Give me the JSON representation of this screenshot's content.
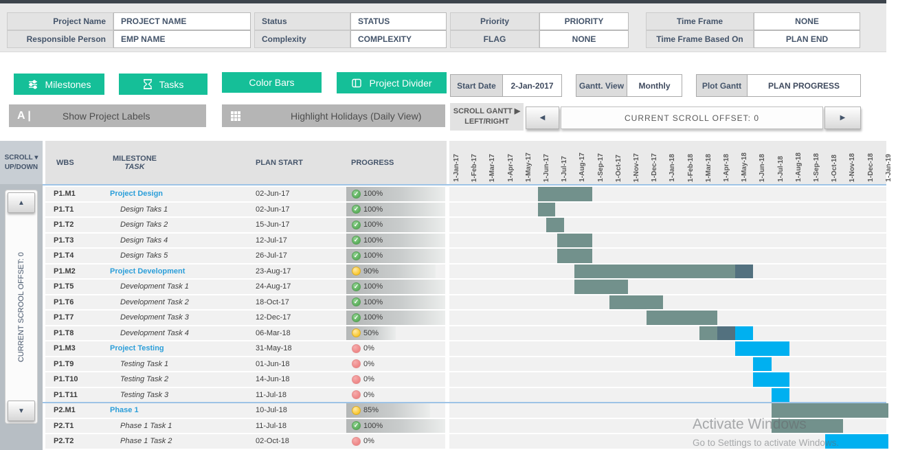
{
  "header_fields": {
    "groups": [
      {
        "rows": [
          {
            "label": "Project Name",
            "value": "PROJECT NAME"
          },
          {
            "label": "Responsible Person",
            "value": "EMP NAME"
          }
        ]
      },
      {
        "rows": [
          {
            "label": "Status",
            "value": "STATUS"
          },
          {
            "label": "Complexity",
            "value": "COMPLEXITY"
          }
        ]
      },
      {
        "rows": [
          {
            "label": "Priority",
            "value": "PRIORITY"
          },
          {
            "label": "FLAG",
            "value": "NONE"
          }
        ]
      },
      {
        "rows": [
          {
            "label": "Time Frame",
            "value": "NONE"
          },
          {
            "label": "Time Frame Based On",
            "value": "PLAN END"
          }
        ]
      }
    ]
  },
  "toolbar": {
    "milestones": "Milestones",
    "tasks": "Tasks",
    "color_bars": "Color Bars",
    "project_divider": "Project Divider",
    "show_labels": "Show Project Labels",
    "show_labels_icon": "A |",
    "highlight_holidays": "Highlight Holidays (Daily View)",
    "start_date_label": "Start Date",
    "start_date_value": "2-Jan-2017",
    "gantt_view_label": "Gantt. View",
    "gantt_view_value": "Monthly",
    "plot_gantt_label": "Plot Gantt",
    "plot_gantt_value": "PLAN PROGRESS",
    "scroll_gantt_line1": "SCROLL GANTT ▶",
    "scroll_gantt_line2": "LEFT/RIGHT",
    "scroll_left_arrow": "◀",
    "scroll_right_arrow": "▶",
    "scroll_offset_text": "CURRENT  SCROLL  OFFSET:  0"
  },
  "table": {
    "scroll_header_line1": "SCROLL ▾",
    "scroll_header_line2": "UP/DOWN",
    "columns": {
      "wbs": "WBS",
      "milestone": "MILESTONE",
      "task": "TASK",
      "plan_start": "PLAN START",
      "progress": "PROGRESS"
    },
    "scrollbar": {
      "up_arrow": "▲",
      "down_arrow": "▼",
      "vertical_text": "CURRENT SCROOL OFFSET: 0"
    },
    "rows": [
      {
        "wbs": "P1.M1",
        "name": "Project Design",
        "type": "milestone",
        "plan_start": "02-Jun-17",
        "progress": "100%",
        "status": "done",
        "bar_pct": 100,
        "segments": [
          {
            "s": 5.05,
            "e": 8.05,
            "c": "sage"
          }
        ]
      },
      {
        "wbs": "P1.T1",
        "name": "Design Taks 1",
        "type": "task",
        "plan_start": "02-Jun-17",
        "progress": "100%",
        "status": "done",
        "bar_pct": 100,
        "segments": [
          {
            "s": 5.05,
            "e": 6.0,
            "c": "sage"
          }
        ]
      },
      {
        "wbs": "P1.T2",
        "name": "Design Taks 2",
        "type": "task",
        "plan_start": "15-Jun-17",
        "progress": "100%",
        "status": "done",
        "bar_pct": 100,
        "segments": [
          {
            "s": 5.5,
            "e": 6.5,
            "c": "sage"
          }
        ]
      },
      {
        "wbs": "P1.T3",
        "name": "Design Taks 4",
        "type": "task",
        "plan_start": "12-Jul-17",
        "progress": "100%",
        "status": "done",
        "bar_pct": 100,
        "segments": [
          {
            "s": 6.1,
            "e": 8.05,
            "c": "sage"
          }
        ]
      },
      {
        "wbs": "P1.T4",
        "name": "Design Taks 5",
        "type": "task",
        "plan_start": "26-Jul-17",
        "progress": "100%",
        "status": "done",
        "bar_pct": 100,
        "segments": [
          {
            "s": 6.1,
            "e": 8.05,
            "c": "sage"
          }
        ]
      },
      {
        "wbs": "P1.M2",
        "name": "Project Development",
        "type": "milestone",
        "plan_start": "23-Aug-17",
        "progress": "90%",
        "status": "mid",
        "bar_pct": 90,
        "segments": [
          {
            "s": 7.05,
            "e": 16.0,
            "c": "sage"
          },
          {
            "s": 16.0,
            "e": 17.0,
            "c": "dark"
          }
        ]
      },
      {
        "wbs": "P1.T5",
        "name": "Development Task 1",
        "type": "task",
        "plan_start": "24-Aug-17",
        "progress": "100%",
        "status": "done",
        "bar_pct": 100,
        "segments": [
          {
            "s": 7.05,
            "e": 10.05,
            "c": "sage"
          }
        ]
      },
      {
        "wbs": "P1.T6",
        "name": "Development Task 2",
        "type": "task",
        "plan_start": "18-Oct-17",
        "progress": "100%",
        "status": "done",
        "bar_pct": 100,
        "segments": [
          {
            "s": 9.0,
            "e": 12.0,
            "c": "sage"
          }
        ]
      },
      {
        "wbs": "P1.T7",
        "name": "Development Task 3",
        "type": "task",
        "plan_start": "12-Dec-17",
        "progress": "100%",
        "status": "done",
        "bar_pct": 100,
        "segments": [
          {
            "s": 11.05,
            "e": 15.0,
            "c": "sage"
          }
        ]
      },
      {
        "wbs": "P1.T8",
        "name": "Development Task 4",
        "type": "task",
        "plan_start": "06-Mar-18",
        "progress": "50%",
        "status": "mid",
        "bar_pct": 50,
        "segments": [
          {
            "s": 14.0,
            "e": 15.0,
            "c": "sage"
          },
          {
            "s": 15.0,
            "e": 16.0,
            "c": "dark"
          },
          {
            "s": 16.0,
            "e": 17.0,
            "c": "blue"
          }
        ]
      },
      {
        "wbs": "P1.M3",
        "name": "Project Testing",
        "type": "milestone",
        "plan_start": "31-May-18",
        "progress": "0%",
        "status": "none",
        "bar_pct": 0,
        "segments": [
          {
            "s": 16.0,
            "e": 19.0,
            "c": "blue"
          }
        ]
      },
      {
        "wbs": "P1.T9",
        "name": "Testing Task 1",
        "type": "task",
        "plan_start": "01-Jun-18",
        "progress": "0%",
        "status": "none",
        "bar_pct": 0,
        "segments": [
          {
            "s": 17.0,
            "e": 18.0,
            "c": "blue"
          }
        ]
      },
      {
        "wbs": "P1.T10",
        "name": "Testing Task 2",
        "type": "task",
        "plan_start": "14-Jun-18",
        "progress": "0%",
        "status": "none",
        "bar_pct": 0,
        "segments": [
          {
            "s": 17.0,
            "e": 19.0,
            "c": "blue"
          }
        ]
      },
      {
        "wbs": "P1.T11",
        "name": "Testing Task 3",
        "type": "task",
        "plan_start": "11-Jul-18",
        "progress": "0%",
        "status": "none",
        "bar_pct": 0,
        "segments": [
          {
            "s": 18.0,
            "e": 19.0,
            "c": "blue"
          }
        ]
      },
      {
        "wbs": "P2.M1",
        "name": "Phase 1",
        "type": "milestone",
        "plan_start": "10-Jul-18",
        "progress": "85%",
        "status": "mid",
        "bar_pct": 85,
        "divider_above": true,
        "segments": [
          {
            "s": 18.0,
            "e": 24.5,
            "c": "sage"
          }
        ]
      },
      {
        "wbs": "P2.T1",
        "name": "Phase 1 Task 1",
        "type": "task",
        "plan_start": "11-Jul-18",
        "progress": "100%",
        "status": "done",
        "bar_pct": 100,
        "segments": [
          {
            "s": 18.0,
            "e": 22.0,
            "c": "sage"
          }
        ]
      },
      {
        "wbs": "P2.T2",
        "name": "Phase 1 Task 2",
        "type": "task",
        "plan_start": "02-Oct-18",
        "progress": "0%",
        "status": "none",
        "bar_pct": 0,
        "segments": [
          {
            "s": 21.0,
            "e": 24.5,
            "c": "blue"
          }
        ]
      }
    ]
  },
  "gantt": {
    "months": [
      "1-Jan-17",
      "1-Feb-17",
      "1-Mar-17",
      "1-Apr-17",
      "1-May-17",
      "1-Jun-17",
      "1-Jul-17",
      "1-Aug-17",
      "1-Sep-17",
      "1-Oct-17",
      "1-Nov-17",
      "1-Dec-17",
      "1-Jan-18",
      "1-Feb-18",
      "1-Mar-18",
      "1-Apr-18",
      "1-May-18",
      "1-Jun-18",
      "1-Jul-18",
      "1-Aug-18",
      "1-Sep-18",
      "1-Oct-18",
      "1-Nov-18",
      "1-Dec-18",
      "1-Jan-19"
    ]
  },
  "watermark": {
    "line1": "Activate Windows",
    "line2": "Go to Settings to activate Windows."
  },
  "colors": {
    "button_green": "#15bf98",
    "button_gray": "#b5b5b5",
    "bar_complete": "#72918c",
    "bar_remaining": "#53717f",
    "bar_future": "#00b0f0",
    "divider_blue": "#9DC3E6",
    "status_done": "#46a246",
    "status_mid": "#f6ba00",
    "status_none": "#eb7676",
    "label_text": "#44546A"
  }
}
